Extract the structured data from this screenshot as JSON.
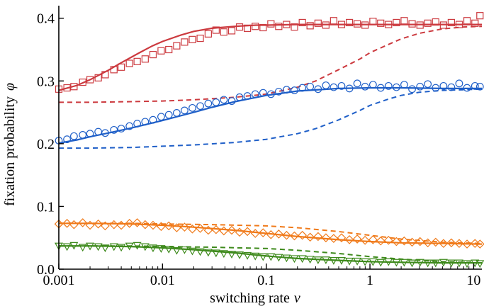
{
  "chart_data": {
    "type": "scatter",
    "title": "",
    "xlabel": "switching rate",
    "xlabel_symbol": "ν",
    "ylabel": "fixation probability",
    "ylabel_symbol": "φ",
    "x_scale": "log",
    "xlim": [
      0.001,
      12
    ],
    "ylim": [
      0.0,
      0.42
    ],
    "x_ticks": [
      0.001,
      0.01,
      0.1,
      1,
      10
    ],
    "x_tick_labels": [
      "0.001",
      "0.01",
      "0.1",
      "1",
      "10"
    ],
    "y_ticks": [
      0.0,
      0.1,
      0.2,
      0.3,
      0.4
    ],
    "y_tick_labels": [
      "0.0",
      "0.1",
      "0.2",
      "0.3",
      "0.4"
    ],
    "grid": false,
    "legend": "none",
    "series": [
      {
        "color": "#cc3a3f",
        "marker": "square",
        "simulation": {
          "x": [
            0.001,
            0.0012,
            0.0014,
            0.0017,
            0.002,
            0.0024,
            0.0028,
            0.0034,
            0.004,
            0.0048,
            0.0057,
            0.0068,
            0.0081,
            0.0097,
            0.0115,
            0.0137,
            0.0163,
            0.0194,
            0.0231,
            0.0276,
            0.0328,
            0.039,
            0.0465,
            0.0553,
            0.0658,
            0.0784,
            0.0933,
            0.111,
            0.132,
            0.157,
            0.187,
            0.223,
            0.265,
            0.316,
            0.376,
            0.447,
            0.532,
            0.634,
            0.754,
            0.897,
            1.07,
            1.27,
            1.51,
            1.8,
            2.14,
            2.55,
            3.04,
            3.61,
            4.3,
            5.12,
            6.09,
            7.25,
            8.63,
            10.3,
            11.5
          ],
          "y": [
            0.287,
            0.289,
            0.291,
            0.298,
            0.302,
            0.305,
            0.31,
            0.318,
            0.322,
            0.328,
            0.331,
            0.335,
            0.342,
            0.348,
            0.35,
            0.356,
            0.362,
            0.366,
            0.368,
            0.375,
            0.381,
            0.378,
            0.38,
            0.386,
            0.384,
            0.387,
            0.385,
            0.391,
            0.387,
            0.39,
            0.386,
            0.393,
            0.388,
            0.392,
            0.389,
            0.396,
            0.39,
            0.393,
            0.391,
            0.389,
            0.395,
            0.392,
            0.39,
            0.393,
            0.396,
            0.391,
            0.389,
            0.392,
            0.394,
            0.389,
            0.393,
            0.39,
            0.396,
            0.392,
            0.404
          ]
        },
        "theory_solid": {
          "x": [
            0.001,
            0.0015,
            0.002,
            0.003,
            0.004,
            0.006,
            0.008,
            0.01,
            0.015,
            0.02,
            0.03,
            0.05,
            0.08,
            0.1,
            0.2,
            0.5,
            1,
            2,
            5,
            12
          ],
          "y": [
            0.285,
            0.293,
            0.302,
            0.317,
            0.329,
            0.345,
            0.356,
            0.363,
            0.373,
            0.379,
            0.384,
            0.387,
            0.389,
            0.389,
            0.39,
            0.39,
            0.39,
            0.39,
            0.39,
            0.39
          ]
        },
        "theory_dashed": {
          "x": [
            0.001,
            0.002,
            0.005,
            0.01,
            0.02,
            0.05,
            0.1,
            0.2,
            0.3,
            0.5,
            0.8,
            1,
            1.5,
            2,
            3,
            5,
            8,
            12
          ],
          "y": [
            0.266,
            0.266,
            0.267,
            0.268,
            0.27,
            0.274,
            0.279,
            0.29,
            0.3,
            0.318,
            0.335,
            0.345,
            0.358,
            0.367,
            0.376,
            0.383,
            0.386,
            0.387
          ]
        }
      },
      {
        "color": "#1f5fc8",
        "marker": "circle",
        "simulation": {
          "x": [
            0.001,
            0.0012,
            0.0014,
            0.0017,
            0.002,
            0.0024,
            0.0028,
            0.0034,
            0.004,
            0.0048,
            0.0057,
            0.0068,
            0.0081,
            0.0097,
            0.0115,
            0.0137,
            0.0163,
            0.0194,
            0.0231,
            0.0276,
            0.0328,
            0.039,
            0.0465,
            0.0553,
            0.0658,
            0.0784,
            0.0933,
            0.111,
            0.132,
            0.157,
            0.187,
            0.223,
            0.265,
            0.316,
            0.376,
            0.447,
            0.532,
            0.634,
            0.754,
            0.897,
            1.07,
            1.27,
            1.51,
            1.8,
            2.14,
            2.55,
            3.04,
            3.61,
            4.3,
            5.12,
            6.09,
            7.25,
            8.63,
            10.3,
            11.5
          ],
          "y": [
            0.205,
            0.207,
            0.212,
            0.214,
            0.216,
            0.219,
            0.217,
            0.222,
            0.224,
            0.228,
            0.232,
            0.235,
            0.238,
            0.243,
            0.246,
            0.249,
            0.253,
            0.257,
            0.26,
            0.264,
            0.266,
            0.27,
            0.268,
            0.274,
            0.276,
            0.279,
            0.281,
            0.279,
            0.283,
            0.286,
            0.285,
            0.289,
            0.291,
            0.287,
            0.293,
            0.29,
            0.292,
            0.288,
            0.296,
            0.291,
            0.294,
            0.289,
            0.292,
            0.29,
            0.294,
            0.287,
            0.291,
            0.295,
            0.289,
            0.292,
            0.29,
            0.296,
            0.289,
            0.292,
            0.291
          ]
        },
        "theory_solid": {
          "x": [
            0.001,
            0.0015,
            0.002,
            0.003,
            0.005,
            0.008,
            0.01,
            0.02,
            0.03,
            0.05,
            0.1,
            0.2,
            0.5,
            1,
            2,
            5,
            12
          ],
          "y": [
            0.201,
            0.206,
            0.211,
            0.217,
            0.225,
            0.233,
            0.237,
            0.25,
            0.258,
            0.267,
            0.277,
            0.284,
            0.288,
            0.289,
            0.289,
            0.288,
            0.288
          ]
        },
        "theory_dashed": {
          "x": [
            0.001,
            0.002,
            0.005,
            0.01,
            0.02,
            0.05,
            0.1,
            0.2,
            0.3,
            0.5,
            0.8,
            1,
            1.5,
            2,
            3,
            5,
            8,
            12
          ],
          "y": [
            0.193,
            0.193,
            0.194,
            0.196,
            0.198,
            0.202,
            0.207,
            0.216,
            0.224,
            0.238,
            0.253,
            0.261,
            0.271,
            0.277,
            0.282,
            0.285,
            0.286,
            0.287
          ]
        }
      },
      {
        "color": "#f07a1a",
        "marker": "diamond",
        "simulation": {
          "x": [
            0.001,
            0.0012,
            0.0014,
            0.0017,
            0.002,
            0.0024,
            0.0028,
            0.0034,
            0.004,
            0.0048,
            0.0057,
            0.0068,
            0.0081,
            0.0097,
            0.0115,
            0.0137,
            0.0163,
            0.0194,
            0.0231,
            0.0276,
            0.0328,
            0.039,
            0.0465,
            0.0553,
            0.0658,
            0.0784,
            0.0933,
            0.111,
            0.132,
            0.157,
            0.187,
            0.223,
            0.265,
            0.316,
            0.376,
            0.447,
            0.532,
            0.634,
            0.754,
            0.897,
            1.07,
            1.27,
            1.51,
            1.8,
            2.14,
            2.55,
            3.04,
            3.61,
            4.3,
            5.12,
            6.09,
            7.25,
            8.63,
            10.3,
            11.5
          ],
          "y": [
            0.072,
            0.073,
            0.071,
            0.074,
            0.07,
            0.072,
            0.069,
            0.071,
            0.07,
            0.073,
            0.074,
            0.071,
            0.07,
            0.068,
            0.069,
            0.066,
            0.067,
            0.064,
            0.065,
            0.062,
            0.063,
            0.061,
            0.062,
            0.059,
            0.06,
            0.057,
            0.058,
            0.055,
            0.056,
            0.054,
            0.053,
            0.054,
            0.051,
            0.052,
            0.05,
            0.049,
            0.05,
            0.047,
            0.048,
            0.046,
            0.047,
            0.045,
            0.046,
            0.044,
            0.045,
            0.043,
            0.044,
            0.042,
            0.043,
            0.041,
            0.042,
            0.041,
            0.04,
            0.041,
            0.04
          ]
        },
        "theory_solid": {
          "x": [
            0.001,
            0.002,
            0.005,
            0.01,
            0.02,
            0.05,
            0.1,
            0.2,
            0.5,
            1,
            2,
            5,
            12
          ],
          "y": [
            0.073,
            0.073,
            0.072,
            0.07,
            0.067,
            0.062,
            0.057,
            0.052,
            0.047,
            0.044,
            0.042,
            0.041,
            0.04
          ]
        },
        "theory_dashed": {
          "x": [
            0.001,
            0.005,
            0.01,
            0.03,
            0.1,
            0.2,
            0.5,
            1,
            2,
            5,
            12
          ],
          "y": [
            0.073,
            0.073,
            0.072,
            0.071,
            0.069,
            0.066,
            0.06,
            0.054,
            0.048,
            0.043,
            0.041
          ]
        }
      },
      {
        "color": "#3e8a1c",
        "marker": "triangle-down",
        "simulation": {
          "x": [
            0.001,
            0.0012,
            0.0014,
            0.0017,
            0.002,
            0.0024,
            0.0028,
            0.0034,
            0.004,
            0.0048,
            0.0057,
            0.0068,
            0.0081,
            0.0097,
            0.0115,
            0.0137,
            0.0163,
            0.0194,
            0.0231,
            0.0276,
            0.0328,
            0.039,
            0.0465,
            0.0553,
            0.0658,
            0.0784,
            0.0933,
            0.111,
            0.132,
            0.157,
            0.187,
            0.223,
            0.265,
            0.316,
            0.376,
            0.447,
            0.532,
            0.634,
            0.754,
            0.897,
            1.07,
            1.27,
            1.51,
            1.8,
            2.14,
            2.55,
            3.04,
            3.61,
            4.3,
            5.12,
            6.09,
            7.25,
            8.63,
            10.3,
            11.5
          ],
          "y": [
            0.037,
            0.036,
            0.038,
            0.035,
            0.037,
            0.036,
            0.034,
            0.036,
            0.035,
            0.037,
            0.038,
            0.036,
            0.034,
            0.033,
            0.032,
            0.03,
            0.031,
            0.029,
            0.028,
            0.027,
            0.026,
            0.025,
            0.024,
            0.023,
            0.022,
            0.021,
            0.02,
            0.02,
            0.019,
            0.018,
            0.017,
            0.017,
            0.016,
            0.015,
            0.015,
            0.014,
            0.014,
            0.013,
            0.013,
            0.012,
            0.012,
            0.011,
            0.012,
            0.011,
            0.011,
            0.01,
            0.011,
            0.01,
            0.01,
            0.011,
            0.01,
            0.01,
            0.009,
            0.01,
            0.009
          ]
        },
        "theory_solid": {
          "x": [
            0.001,
            0.002,
            0.005,
            0.01,
            0.02,
            0.05,
            0.1,
            0.2,
            0.5,
            1,
            2,
            5,
            12
          ],
          "y": [
            0.037,
            0.037,
            0.036,
            0.034,
            0.031,
            0.026,
            0.021,
            0.017,
            0.014,
            0.012,
            0.011,
            0.01,
            0.01
          ]
        },
        "theory_dashed": {
          "x": [
            0.001,
            0.005,
            0.01,
            0.03,
            0.1,
            0.2,
            0.5,
            1,
            2,
            5,
            12
          ],
          "y": [
            0.037,
            0.037,
            0.036,
            0.035,
            0.033,
            0.03,
            0.025,
            0.02,
            0.016,
            0.012,
            0.01
          ]
        }
      }
    ]
  }
}
